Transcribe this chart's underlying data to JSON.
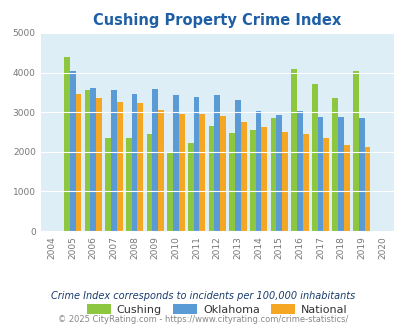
{
  "title": "Cushing Property Crime Index",
  "plot_years": [
    2005,
    2006,
    2007,
    2008,
    2009,
    2010,
    2011,
    2012,
    2013,
    2014,
    2015,
    2016,
    2017,
    2018,
    2019
  ],
  "all_xtick_years": [
    2004,
    2005,
    2006,
    2007,
    2008,
    2009,
    2010,
    2011,
    2012,
    2013,
    2014,
    2015,
    2016,
    2017,
    2018,
    2019,
    2020
  ],
  "cushing": [
    4400,
    3550,
    2350,
    2350,
    2450,
    2000,
    2225,
    2650,
    2480,
    2550,
    2850,
    4100,
    3700,
    3350,
    4050
  ],
  "oklahoma": [
    4050,
    3600,
    3550,
    3450,
    3575,
    3425,
    3375,
    3425,
    3300,
    3020,
    2930,
    3020,
    2870,
    2870,
    2860
  ],
  "national": [
    3450,
    3350,
    3250,
    3225,
    3050,
    2950,
    2950,
    2900,
    2750,
    2620,
    2500,
    2460,
    2350,
    2180,
    2130
  ],
  "cushing_color": "#8dc63f",
  "oklahoma_color": "#5b9bd5",
  "national_color": "#f5a623",
  "bg_color": "#ddeef6",
  "title_color": "#1f5fa6",
  "footnote_color": "#1a3c6e",
  "copyright_color": "#888888",
  "copyright_url_color": "#4f94cd",
  "ylim": [
    0,
    5000
  ],
  "yticks": [
    0,
    1000,
    2000,
    3000,
    4000,
    5000
  ],
  "footnote1": "Crime Index corresponds to incidents per 100,000 inhabitants",
  "footnote2": "© 2025 CityRating.com - https://www.cityrating.com/crime-statistics/",
  "bar_width": 0.28,
  "legend_labels": [
    "Cushing",
    "Oklahoma",
    "National"
  ]
}
